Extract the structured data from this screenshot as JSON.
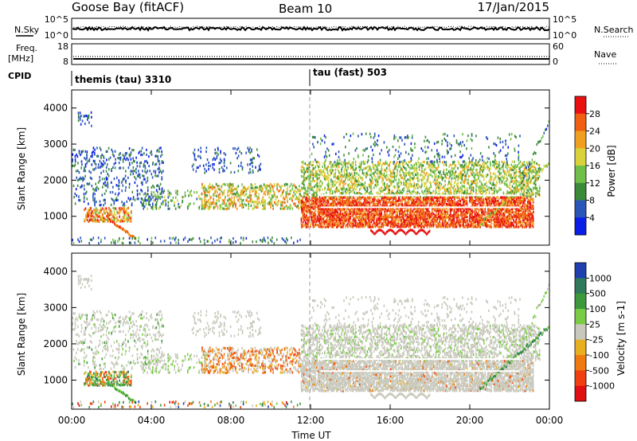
{
  "header": {
    "station": "Goose Bay (fitACF)",
    "beam": "Beam 10",
    "date": "17/Jan/2015"
  },
  "noise_panel": {
    "left_label": "N.Sky",
    "right_label": "N.Search",
    "left_ticks": [
      "10^5",
      "10^0"
    ],
    "right_ticks": [
      "10^5",
      "10^0"
    ]
  },
  "freq_panel": {
    "left_label_1": "Freq.",
    "left_label_2": "[MHz]",
    "left_ticks": [
      "18",
      "8"
    ],
    "right_label": "Nave",
    "right_ticks": [
      "60",
      "0"
    ]
  },
  "cpid_panel": {
    "label": "CPID",
    "modes": [
      {
        "name": "themis (tau) 3310",
        "start_hour": 0
      },
      {
        "name": "tau (fast) 503",
        "start_hour": 12
      }
    ]
  },
  "power_panel": {
    "ylabel": "Slant Range [km]",
    "yticks": [
      "4000",
      "3000",
      "2000",
      "1000"
    ],
    "colorbar_label": "Power [dB]",
    "colorbar_ticks": [
      "28",
      "24",
      "20",
      "16",
      "12",
      "8",
      "4"
    ],
    "colors": [
      "#0a1ee8",
      "#2a55b8",
      "#3a8a3a",
      "#6fbf4a",
      "#d9d23a",
      "#f0a020",
      "#f06010",
      "#e81010"
    ]
  },
  "velocity_panel": {
    "ylabel": "Slant Range [km]",
    "yticks": [
      "4000",
      "3000",
      "2000",
      "1000"
    ],
    "colorbar_label": "Velocity [m s-1]",
    "colorbar_ticks": [
      "1000",
      "500",
      "100",
      "25",
      "-25",
      "-100",
      "-500",
      "-1000"
    ],
    "colors": [
      "#2040b0",
      "#2f7a5a",
      "#3c9a3c",
      "#7acc44",
      "#c8c8bc",
      "#e8b020",
      "#f07a10",
      "#f04010",
      "#e01010"
    ]
  },
  "xaxis": {
    "label": "Time UT",
    "ticks": [
      "00:00",
      "04:00",
      "08:00",
      "12:00",
      "16:00",
      "20:00",
      "00:00"
    ]
  },
  "chart_data": [
    {
      "type": "heatmap",
      "name": "Power",
      "x_unit": "hours UT",
      "y_unit": "km",
      "xlim": [
        0,
        24
      ],
      "ylim": [
        200,
        4500
      ],
      "zlim": [
        0,
        32
      ],
      "regions": [
        {
          "x": [
            0.5,
            3.0
          ],
          "y": [
            800,
            1300
          ],
          "level": "high"
        },
        {
          "x": [
            0.0,
            4.5
          ],
          "y": [
            1300,
            2800
          ],
          "level": "low"
        },
        {
          "x": [
            7.0,
            11.5
          ],
          "y": [
            1200,
            1900
          ],
          "level": "medium"
        },
        {
          "x": [
            11.5,
            23.0
          ],
          "y": [
            700,
            1500
          ],
          "level": "high"
        },
        {
          "x": [
            12.0,
            24.0
          ],
          "y": [
            1500,
            2600
          ],
          "level": "medium"
        }
      ]
    },
    {
      "type": "heatmap",
      "name": "Velocity",
      "x_unit": "hours UT",
      "y_unit": "km",
      "xlim": [
        0,
        24
      ],
      "ylim": [
        200,
        4500
      ],
      "zlim": [
        -1000,
        1000
      ],
      "regions": [
        {
          "x": [
            11.5,
            23.0
          ],
          "y": [
            700,
            1600
          ],
          "level": "ground scatter"
        },
        {
          "x": [
            7.5,
            11.0
          ],
          "y": [
            1200,
            1800
          ],
          "level": "negative"
        },
        {
          "x": [
            21.0,
            24.0
          ],
          "y": [
            800,
            1600
          ],
          "level": "positive"
        }
      ]
    }
  ]
}
